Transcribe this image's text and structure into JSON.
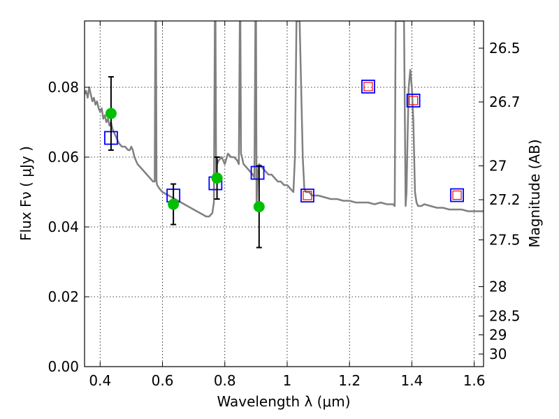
{
  "chart_data": {
    "type": "scatter",
    "title": "",
    "xlabel": "Wavelength  λ (μm)",
    "ylabel": "Flux  Fν  ( μJy )",
    "y2label": "Magnitude (AB)",
    "xlim": [
      0.35,
      1.63
    ],
    "ylim": [
      0.0,
      0.099
    ],
    "grid": true,
    "x_ticks": [
      {
        "value": 0.4,
        "label": "0.4"
      },
      {
        "value": 0.6,
        "label": "0.6"
      },
      {
        "value": 0.8,
        "label": "0.8"
      },
      {
        "value": 1.0,
        "label": "1"
      },
      {
        "value": 1.2,
        "label": "1.2"
      },
      {
        "value": 1.4,
        "label": "1.4"
      },
      {
        "value": 1.6,
        "label": "1.6"
      }
    ],
    "y_ticks": [
      {
        "value": 0.0,
        "label": "0.00"
      },
      {
        "value": 0.02,
        "label": "0.02"
      },
      {
        "value": 0.04,
        "label": "0.04"
      },
      {
        "value": 0.06,
        "label": "0.06"
      },
      {
        "value": 0.08,
        "label": "0.08"
      }
    ],
    "y2_ticks": [
      {
        "flux": 0.0912,
        "label": "26.5"
      },
      {
        "flux": 0.0758,
        "label": "26.7"
      },
      {
        "flux": 0.0575,
        "label": "27"
      },
      {
        "flux": 0.0478,
        "label": "27.2"
      },
      {
        "flux": 0.0363,
        "label": "27.5"
      },
      {
        "flux": 0.0229,
        "label": "28"
      },
      {
        "flux": 0.0145,
        "label": "28.5"
      },
      {
        "flux": 0.0091,
        "label": "29"
      },
      {
        "flux": 0.0036,
        "label": "30"
      }
    ],
    "series": [
      {
        "kind": "line",
        "color": "#808080",
        "x": [
          0.35,
          0.355,
          0.36,
          0.365,
          0.37,
          0.375,
          0.38,
          0.385,
          0.39,
          0.395,
          0.4,
          0.405,
          0.41,
          0.415,
          0.42,
          0.425,
          0.43,
          0.435,
          0.44,
          0.445,
          0.45,
          0.46,
          0.47,
          0.48,
          0.49,
          0.495,
          0.5,
          0.505,
          0.51,
          0.52,
          0.53,
          0.54,
          0.55,
          0.56,
          0.57,
          0.575,
          0.577,
          0.579,
          0.581,
          0.583,
          0.59,
          0.6,
          0.62,
          0.64,
          0.66,
          0.68,
          0.7,
          0.72,
          0.74,
          0.75,
          0.76,
          0.765,
          0.768,
          0.77,
          0.772,
          0.775,
          0.78,
          0.79,
          0.8,
          0.81,
          0.82,
          0.83,
          0.84,
          0.845,
          0.848,
          0.85,
          0.852,
          0.855,
          0.86,
          0.87,
          0.88,
          0.89,
          0.895,
          0.898,
          0.9,
          0.902,
          0.905,
          0.91,
          0.92,
          0.93,
          0.94,
          0.95,
          0.96,
          0.97,
          0.98,
          0.99,
          1.0,
          1.01,
          1.02,
          1.025,
          1.03,
          1.035,
          1.04,
          1.045,
          1.05,
          1.055,
          1.06,
          1.07,
          1.08,
          1.1,
          1.12,
          1.14,
          1.16,
          1.18,
          1.2,
          1.22,
          1.24,
          1.26,
          1.28,
          1.3,
          1.32,
          1.34,
          1.345,
          1.348,
          1.35,
          1.355,
          1.36,
          1.365,
          1.37,
          1.375,
          1.38,
          1.383,
          1.386,
          1.39,
          1.395,
          1.4,
          1.405,
          1.41,
          1.415,
          1.42,
          1.43,
          1.44,
          1.46,
          1.48,
          1.5,
          1.52,
          1.54,
          1.56,
          1.58,
          1.6,
          1.63
        ],
        "y": [
          0.078,
          0.079,
          0.077,
          0.08,
          0.078,
          0.076,
          0.077,
          0.075,
          0.076,
          0.074,
          0.073,
          0.074,
          0.071,
          0.072,
          0.07,
          0.071,
          0.069,
          0.07,
          0.068,
          0.067,
          0.066,
          0.064,
          0.063,
          0.063,
          0.062,
          0.062,
          0.063,
          0.062,
          0.06,
          0.058,
          0.057,
          0.056,
          0.055,
          0.054,
          0.053,
          0.053,
          0.099,
          0.099,
          0.053,
          0.052,
          0.051,
          0.05,
          0.049,
          0.048,
          0.047,
          0.046,
          0.045,
          0.044,
          0.043,
          0.043,
          0.044,
          0.047,
          0.099,
          0.099,
          0.055,
          0.058,
          0.059,
          0.06,
          0.058,
          0.061,
          0.06,
          0.06,
          0.059,
          0.058,
          0.099,
          0.099,
          0.061,
          0.06,
          0.058,
          0.057,
          0.056,
          0.055,
          0.054,
          0.099,
          0.099,
          0.046,
          0.055,
          0.058,
          0.057,
          0.056,
          0.055,
          0.055,
          0.054,
          0.053,
          0.053,
          0.052,
          0.052,
          0.051,
          0.05,
          0.06,
          0.099,
          0.099,
          0.099,
          0.08,
          0.06,
          0.051,
          0.05,
          0.05,
          0.049,
          0.049,
          0.0485,
          0.048,
          0.048,
          0.0475,
          0.0475,
          0.047,
          0.047,
          0.047,
          0.0465,
          0.047,
          0.0465,
          0.0465,
          0.046,
          0.099,
          0.099,
          0.099,
          0.099,
          0.099,
          0.099,
          0.099,
          0.046,
          0.05,
          0.065,
          0.08,
          0.085,
          0.08,
          0.07,
          0.05,
          0.047,
          0.046,
          0.046,
          0.0465,
          0.046,
          0.0455,
          0.0455,
          0.045,
          0.045,
          0.045,
          0.0445,
          0.0445,
          0.0445
        ]
      },
      {
        "kind": "open-square",
        "color": "#0000ff",
        "x": [
          0.435,
          0.635,
          0.77,
          0.905
        ],
        "y": [
          0.0655,
          0.049,
          0.0525,
          0.0555
        ]
      },
      {
        "kind": "square-in-square",
        "outer_color": "#0000ff",
        "inner_color": "#ff0000",
        "x": [
          1.065,
          1.26,
          1.405,
          1.545
        ],
        "y": [
          0.049,
          0.0802,
          0.0762,
          0.0491
        ]
      },
      {
        "kind": "filled-circle-errorbar",
        "color": "#00c000",
        "x": [
          0.435,
          0.635,
          0.775,
          0.91
        ],
        "y": [
          0.0725,
          0.0465,
          0.054,
          0.0458
        ],
        "yerr": [
          0.0105,
          0.0058,
          0.006,
          0.0117
        ]
      }
    ]
  }
}
